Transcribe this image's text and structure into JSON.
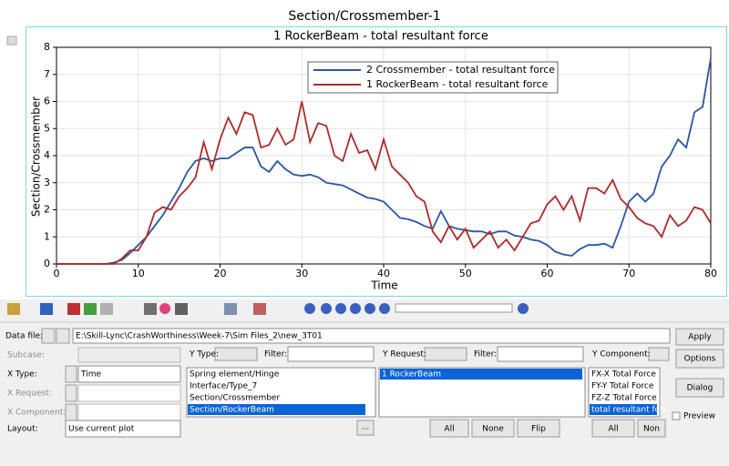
{
  "window_title": "Section/Crossmember-1",
  "chart_data": {
    "type": "line",
    "title": "1 RockerBeam - total resultant force",
    "x_label": "Time",
    "y_label": "Section/Crossmember",
    "x": [
      0,
      1,
      2,
      3,
      4,
      5,
      6,
      7,
      8,
      9,
      10,
      11,
      12,
      13,
      14,
      15,
      16,
      17,
      18,
      19,
      20,
      21,
      22,
      23,
      24,
      25,
      26,
      27,
      28,
      29,
      30,
      31,
      32,
      33,
      34,
      35,
      36,
      37,
      38,
      39,
      40,
      41,
      42,
      43,
      44,
      45,
      46,
      47,
      48,
      49,
      50,
      51,
      52,
      53,
      54,
      55,
      56,
      57,
      58,
      59,
      60,
      61,
      62,
      63,
      64,
      65,
      66,
      67,
      68,
      69,
      70,
      71,
      72,
      73,
      74,
      75,
      76,
      77,
      78,
      79,
      80
    ],
    "series": [
      {
        "name": "2 Crossmember - total resultant force",
        "color": "#2a56a8",
        "values": [
          0,
          0,
          0,
          0,
          0,
          0,
          0,
          0.05,
          0.15,
          0.4,
          0.7,
          1.0,
          1.4,
          1.8,
          2.3,
          2.8,
          3.4,
          3.8,
          3.9,
          3.8,
          3.9,
          3.9,
          4.1,
          4.3,
          4.3,
          3.6,
          3.4,
          3.8,
          3.5,
          3.3,
          3.25,
          3.3,
          3.2,
          3.0,
          2.95,
          2.9,
          2.75,
          2.6,
          2.45,
          2.4,
          2.3,
          2.0,
          1.7,
          1.65,
          1.55,
          1.4,
          1.3,
          1.95,
          1.4,
          1.3,
          1.25,
          1.2,
          1.2,
          1.1,
          1.2,
          1.2,
          1.05,
          1.0,
          0.9,
          0.85,
          0.7,
          0.45,
          0.35,
          0.3,
          0.55,
          0.7,
          0.7,
          0.75,
          0.6,
          1.4,
          2.3,
          2.6,
          2.3,
          2.6,
          3.6,
          4.0,
          4.6,
          4.3,
          5.6,
          5.8,
          7.6
        ]
      },
      {
        "name": "1 RockerBeam - total resultant force",
        "color": "#b22a2a",
        "values": [
          0,
          0,
          0,
          0,
          0,
          0,
          0,
          0,
          0.2,
          0.5,
          0.5,
          1.0,
          1.9,
          2.1,
          2.0,
          2.5,
          2.8,
          3.2,
          4.5,
          3.5,
          4.6,
          5.4,
          4.8,
          5.6,
          5.5,
          4.3,
          4.4,
          5.0,
          4.4,
          4.6,
          6.0,
          4.5,
          5.2,
          5.1,
          4.0,
          3.8,
          4.8,
          4.1,
          4.2,
          3.5,
          4.6,
          3.6,
          3.3,
          3.0,
          2.5,
          2.3,
          1.2,
          0.8,
          1.4,
          0.9,
          1.3,
          0.6,
          0.9,
          1.2,
          0.6,
          0.9,
          0.5,
          1.0,
          1.5,
          1.6,
          2.2,
          2.5,
          2.0,
          2.5,
          1.6,
          2.8,
          2.8,
          2.6,
          3.1,
          2.4,
          2.1,
          1.7,
          1.5,
          1.4,
          1.0,
          1.8,
          1.4,
          1.6,
          2.1,
          2.0,
          1.5
        ]
      }
    ],
    "xlim": [
      0,
      80
    ],
    "xticks": [
      0,
      10,
      20,
      30,
      40,
      50,
      60,
      70,
      80
    ],
    "ylim": [
      0,
      8
    ],
    "yticks": [
      0,
      1,
      2,
      3,
      4,
      5,
      6,
      7,
      8
    ],
    "grid": true,
    "legend_position": "top"
  },
  "ui": {
    "data_file_label": "Data file:",
    "data_file_path": "E:\\Skill-Lync\\CrashWorthiness\\Week-7\\Sim Files_2\\new_3T01",
    "apply": "Apply",
    "options": "Options",
    "dialog": "Dialog",
    "preview": "Preview",
    "subcase_label": "Subcase:",
    "x_type_label": "X Type:",
    "x_type_value": "Time",
    "x_request_label": "X Request:",
    "x_component_label": "X Component:",
    "layout_label": "Layout:",
    "layout_value": "Use current plot",
    "more": "...",
    "y_type_label": "Y Type:",
    "y_type_filter": "Filter:",
    "y_request_label": "Y Request:",
    "y_request_filter": "Filter:",
    "y_component_label": "Y Component:",
    "y_type_items": [
      "Spring element/Hinge",
      "Interface/Type_7",
      "Section/Crossmember",
      "Section/RockerBeam"
    ],
    "y_request_items": [
      "1 RockerBeam"
    ],
    "y_component_items": [
      "FX-X Total Force",
      "FY-Y Total Force",
      "FZ-Z Total Force",
      "total resultant forc"
    ],
    "buttons": [
      "All",
      "None",
      "Flip",
      "All",
      "Non"
    ]
  }
}
